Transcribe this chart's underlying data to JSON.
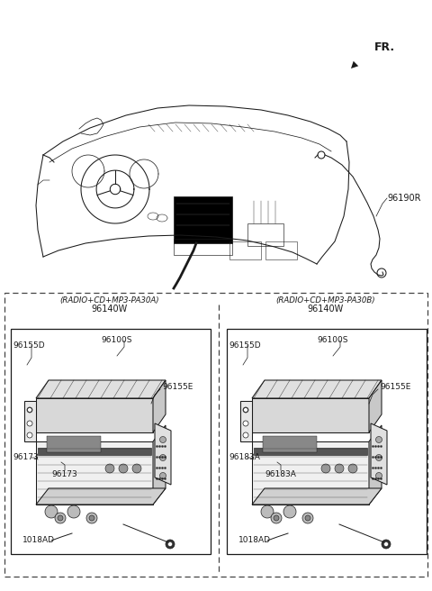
{
  "bg_color": "#ffffff",
  "line_color": "#1a1a1a",
  "dashed_color": "#444444",
  "fr_label": "FR.",
  "part_96190R": "96190R",
  "left_panel_label1": "(RADIO+CD+MP3-PA30A)",
  "left_panel_label2": "96140W",
  "right_panel_label1": "(RADIO+CD+MP3-PA30B)",
  "right_panel_label2": "96140W",
  "left_parts": {
    "96155D": "96155D",
    "96100S": "96100S",
    "96155E": "96155E",
    "96173_left": "96173",
    "96173_bot": "96173",
    "1018AD": "1018AD"
  },
  "right_parts": {
    "96155D": "96155D",
    "96100S": "96100S",
    "96155E": "96155E",
    "96183A_left": "96183A",
    "96183A_bot": "96183A",
    "1018AD": "1018AD"
  },
  "figsize": [
    4.8,
    6.56
  ],
  "dpi": 100,
  "xlim": [
    0,
    480
  ],
  "ylim": [
    0,
    656
  ]
}
